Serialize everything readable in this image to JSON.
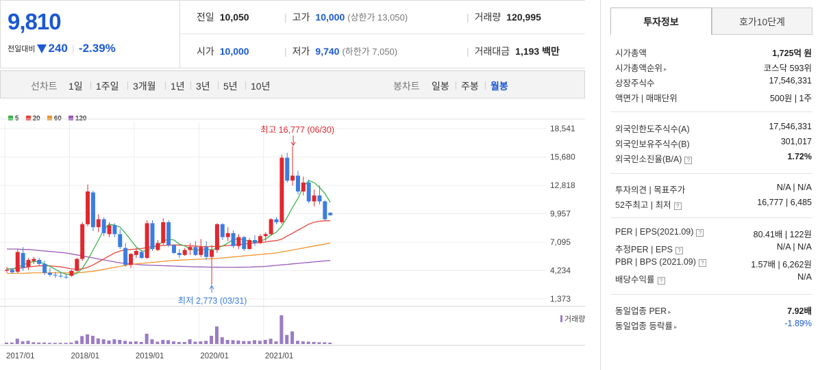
{
  "quote": {
    "current_price": "9,810",
    "change_label": "전일대비",
    "change_amount": "240",
    "change_pct": "-2.39%",
    "prev_close_label": "전일",
    "prev_close": "10,050",
    "high_label": "고가",
    "high": "10,000",
    "upper_limit": "(상한가 13,050)",
    "volume_label": "거래량",
    "volume": "120,995",
    "open_label": "시가",
    "open": "10,000",
    "low_label": "저가",
    "low": "9,740",
    "lower_limit": "(하한가 7,050)",
    "turnover_label": "거래대금",
    "turnover": "1,193 백만",
    "colors": {
      "down": "#1b58d3",
      "up": "#e0282e"
    }
  },
  "period_bar": {
    "line_chart_label": "선차트",
    "line_periods": [
      "1일",
      "1주일",
      "3개월",
      "1년",
      "3년",
      "5년",
      "10년"
    ],
    "candle_chart_label": "봉차트",
    "candle_periods": [
      "일봉",
      "주봉",
      "월봉"
    ],
    "active_candle": "월봉"
  },
  "chart_data": {
    "type": "candlestick",
    "legend": [
      {
        "name": "5",
        "color": "#3cb44b"
      },
      {
        "name": "20",
        "color": "#e8443a"
      },
      {
        "name": "60",
        "color": "#f0932b"
      },
      {
        "name": "120",
        "color": "#9b59b6"
      }
    ],
    "y_ticks": [
      "18,541",
      "15,680",
      "12,818",
      "9,957",
      "7,095",
      "4,234",
      "1,373"
    ],
    "y_tick_values": [
      18541,
      15680,
      12818,
      9957,
      7095,
      4234,
      1373
    ],
    "ylim": [
      1373,
      18541
    ],
    "x_ticks": [
      "2017/01",
      "2018/01",
      "2019/01",
      "2020/01",
      "2021/01"
    ],
    "x_tick_index": [
      0,
      12,
      24,
      36,
      48
    ],
    "volume_label": "거래량",
    "annotation_high": "최고 16,777 (06/30)",
    "annotation_low": "최저 2,773 (03/31)",
    "high_value": 16777,
    "high_index": 53,
    "low_value": 2773,
    "low_index": 38,
    "up_color": "#e0282e",
    "down_color": "#3b7de1",
    "volume_color": "#9a7cc4",
    "candles": [
      [
        4200,
        4600,
        4000,
        4300
      ],
      [
        4300,
        4500,
        3900,
        4050
      ],
      [
        4100,
        6400,
        4000,
        6100
      ],
      [
        6000,
        6600,
        4200,
        4500
      ],
      [
        4600,
        5500,
        4300,
        5300
      ],
      [
        5200,
        5600,
        4900,
        5400
      ],
      [
        5300,
        5500,
        4700,
        4900
      ],
      [
        4900,
        5200,
        3800,
        4000
      ],
      [
        4000,
        4500,
        3600,
        3800
      ],
      [
        3800,
        4100,
        3500,
        3750
      ],
      [
        3700,
        4000,
        3500,
        3650
      ],
      [
        3600,
        3900,
        3400,
        3550
      ],
      [
        3700,
        4300,
        3600,
        4200
      ],
      [
        4200,
        5500,
        4100,
        5400
      ],
      [
        5400,
        9100,
        5200,
        8900
      ],
      [
        8900,
        12900,
        8700,
        12200
      ],
      [
        12100,
        12300,
        8200,
        8600
      ],
      [
        8600,
        9900,
        8100,
        9400
      ],
      [
        9400,
        9600,
        7700,
        8000
      ],
      [
        7900,
        9100,
        7600,
        8800
      ],
      [
        8800,
        9000,
        7600,
        7900
      ],
      [
        7900,
        8400,
        6400,
        6600
      ],
      [
        6500,
        7000,
        4600,
        4800
      ],
      [
        4800,
        6000,
        4500,
        5900
      ],
      [
        5800,
        6500,
        5500,
        6200
      ],
      [
        6100,
        6300,
        5400,
        5500
      ],
      [
        5500,
        9300,
        5400,
        9000
      ],
      [
        9000,
        9300,
        6200,
        6400
      ],
      [
        6300,
        7300,
        6200,
        7000
      ],
      [
        7000,
        9500,
        6800,
        9100
      ],
      [
        9100,
        9300,
        6600,
        6800
      ],
      [
        6800,
        6900,
        5900,
        6000
      ],
      [
        6000,
        6400,
        5500,
        5800
      ],
      [
        5800,
        6500,
        5700,
        6300
      ],
      [
        6300,
        7000,
        5800,
        6600
      ],
      [
        6600,
        7200,
        5700,
        5800
      ],
      [
        5800,
        7400,
        5600,
        6600
      ],
      [
        6600,
        7200,
        5300,
        5600
      ],
      [
        5600,
        6800,
        2773,
        6300
      ],
      [
        6300,
        9000,
        6000,
        8900
      ],
      [
        8900,
        9000,
        7300,
        7600
      ],
      [
        7600,
        8600,
        7200,
        8000
      ],
      [
        8000,
        8300,
        6500,
        6700
      ],
      [
        6700,
        7900,
        6400,
        7600
      ],
      [
        7600,
        7700,
        6200,
        6400
      ],
      [
        6400,
        7500,
        6300,
        7300
      ],
      [
        7300,
        7800,
        6700,
        7000
      ],
      [
        7000,
        7900,
        6900,
        7700
      ],
      [
        7700,
        8100,
        7200,
        7900
      ],
      [
        7900,
        9500,
        7800,
        9400
      ],
      [
        9400,
        9600,
        8900,
        9100
      ],
      [
        9100,
        15900,
        8900,
        15600
      ],
      [
        15600,
        16100,
        13100,
        13300
      ],
      [
        13300,
        16777,
        12800,
        13800
      ],
      [
        13800,
        14300,
        11900,
        12200
      ],
      [
        12200,
        13700,
        11800,
        13100
      ],
      [
        13100,
        13400,
        11000,
        11200
      ],
      [
        11200,
        12400,
        10700,
        11800
      ],
      [
        11800,
        12800,
        10900,
        11200
      ],
      [
        11200,
        11300,
        9300,
        9400
      ],
      [
        10050,
        10100,
        9740,
        9810
      ]
    ],
    "volumes": [
      0.5,
      0.5,
      1.8,
      0.9,
      1.1,
      0.6,
      0.5,
      0.5,
      0.4,
      0.4,
      0.4,
      0.4,
      0.5,
      1.1,
      2.7,
      3.3,
      2.8,
      1.9,
      1.6,
      1.2,
      1.6,
      1.4,
      1.1,
      0.8,
      0.9,
      0.7,
      3.5,
      1.6,
      0.8,
      1.4,
      1.3,
      0.9,
      0.7,
      0.7,
      1.6,
      0.8,
      0.9,
      1.1,
      2.8,
      6.0,
      2.3,
      1.4,
      1.3,
      1.2,
      1.0,
      1.0,
      1.3,
      1.1,
      1.4,
      1.8,
      0.9,
      9.8,
      3.1,
      4.3,
      1.1,
      0.9,
      0.8,
      0.7,
      0.6,
      0.6,
      0.5
    ],
    "ma": {
      "5": [
        4400,
        4350,
        4600,
        4800,
        5000,
        5150,
        5100,
        4900,
        4650,
        4350,
        4050,
        3850,
        3800,
        3950,
        4450,
        5300,
        6300,
        7300,
        8400,
        8900,
        8800,
        8600,
        8000,
        7300,
        6600,
        6200,
        6200,
        6600,
        6700,
        7200,
        7400,
        7300,
        6900,
        6700,
        6400,
        6300,
        6300,
        6400,
        6300,
        6500,
        6700,
        7000,
        7400,
        7400,
        7300,
        7200,
        7100,
        7200,
        7400,
        7800,
        8100,
        8700,
        9600,
        10600,
        11500,
        12700,
        13300,
        13100,
        12600,
        12000,
        11100
      ],
      "20": [
        4400,
        4400,
        4450,
        4500,
        4600,
        4650,
        4700,
        4700,
        4700,
        4650,
        4600,
        4500,
        4400,
        4350,
        4400,
        4550,
        4800,
        5100,
        5400,
        5700,
        6000,
        6200,
        6300,
        6350,
        6400,
        6450,
        6550,
        6650,
        6700,
        6750,
        6800,
        6800,
        6800,
        6750,
        6700,
        6700,
        6650,
        6650,
        6650,
        6650,
        6700,
        6750,
        6800,
        6850,
        6900,
        6950,
        7000,
        7050,
        7100,
        7200,
        7250,
        7400,
        7700,
        8000,
        8300,
        8600,
        8900,
        9100,
        9200,
        9250,
        9250
      ],
      "60": [
        3950,
        3950,
        3950,
        3950,
        3975,
        4000,
        4000,
        4000,
        4000,
        4000,
        4000,
        4000,
        4000,
        4000,
        4050,
        4100,
        4150,
        4250,
        4350,
        4450,
        4550,
        4650,
        4750,
        4850,
        4900,
        4950,
        5000,
        5050,
        5100,
        5150,
        5200,
        5250,
        5280,
        5300,
        5330,
        5350,
        5380,
        5400,
        5420,
        5450,
        5500,
        5550,
        5600,
        5650,
        5700,
        5750,
        5800,
        5850,
        5900,
        5950,
        6000,
        6100,
        6200,
        6300,
        6400,
        6500,
        6600,
        6700,
        6800,
        6900,
        7000
      ],
      "120": [
        6400,
        6400,
        6400,
        6350,
        6350,
        6300,
        6250,
        6200,
        6150,
        6100,
        6050,
        6000,
        5900,
        5800,
        5700,
        5600,
        5500,
        5400,
        5300,
        5200,
        5100,
        5000,
        4950,
        4900,
        4850,
        4800,
        4780,
        4760,
        4740,
        4720,
        4700,
        4680,
        4660,
        4640,
        4620,
        4600,
        4590,
        4580,
        4570,
        4560,
        4550,
        4550,
        4550,
        4560,
        4570,
        4580,
        4600,
        4620,
        4650,
        4700,
        4750,
        4800,
        4850,
        4900,
        4950,
        5000,
        5050,
        5100,
        5150,
        5200,
        5250
      ]
    }
  },
  "right_panel": {
    "tabs": [
      "투자정보",
      "호가10단계"
    ],
    "sections": [
      [
        {
          "k": "시가총액",
          "v": "1,725억 원"
        },
        {
          "k": "시가총액순위",
          "v": "코스닥 593위"
        },
        {
          "k": "상장주식수",
          "v": "17,546,331"
        },
        {
          "k": "액면가 | 매매단위",
          "v": "500원 | 1주"
        }
      ],
      [
        {
          "k": "외국인한도주식수(A)",
          "v": "17,546,331"
        },
        {
          "k": "외국인보유주식수(B)",
          "v": "301,017"
        },
        {
          "k": "외국인소진율(B/A)",
          "v": "1.72%"
        }
      ],
      [
        {
          "k": "투자의견 | 목표주가",
          "v": "N/A | N/A"
        },
        {
          "k": "52주최고 | 최저",
          "v": "16,777 | 6,485"
        }
      ],
      [
        {
          "k": "PER | EPS(2021.09)",
          "v": "80.41배 | 122원"
        },
        {
          "k": "추정PER | EPS",
          "v": "N/A | N/A"
        },
        {
          "k": "PBR | BPS (2021.09)",
          "v": "1.57배 | 6,262원"
        },
        {
          "k": "배당수익률",
          "v": "N/A"
        }
      ],
      [
        {
          "k": "동일업종 PER",
          "v": "7.92배"
        },
        {
          "k": "동일업종 등락률",
          "v": "-1.89%"
        }
      ]
    ]
  }
}
